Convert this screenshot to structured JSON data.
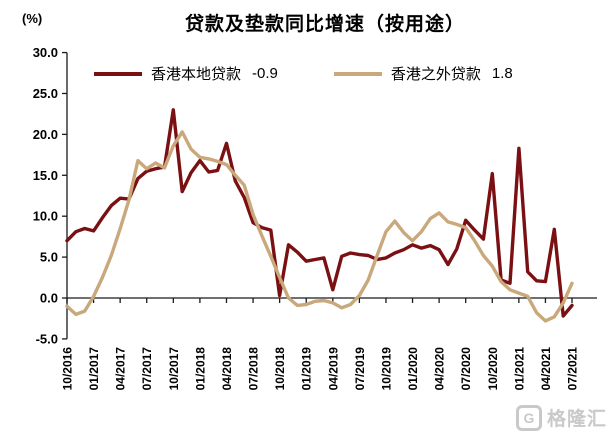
{
  "header": {
    "title": "贷款及垫款同比增速（按用途）",
    "unit_label": "(%)"
  },
  "legend": [
    {
      "label": "香港本地贷款",
      "value": "-0.9",
      "color": "#7A1013"
    },
    {
      "label": "香港之外贷款",
      "value": "1.8",
      "color": "#C9A87C"
    }
  ],
  "watermark": {
    "logo_text": "G",
    "brand_text": "格隆汇"
  },
  "chart_data": {
    "type": "line",
    "title": "贷款及垫款同比增速（按用途）",
    "ylabel": "(%)",
    "xlabel": "",
    "ylim": [
      -5,
      30
    ],
    "ytick_step": 5,
    "grid": false,
    "legend_position": "top",
    "x_frequency": "monthly",
    "x_tick_labels": [
      "10/2016",
      "01/2017",
      "04/2017",
      "07/2017",
      "10/2017",
      "01/2018",
      "04/2018",
      "07/2018",
      "10/2018",
      "01/2019",
      "04/2019",
      "07/2019",
      "10/2019",
      "01/2020",
      "04/2020",
      "07/2020",
      "10/2020",
      "01/2021",
      "04/2021",
      "07/2021"
    ],
    "series": [
      {
        "name": "香港本地贷款",
        "last_value": -0.9,
        "color": "#7A1013",
        "values": [
          7.0,
          8.1,
          8.5,
          8.2,
          9.8,
          11.3,
          12.2,
          12.1,
          14.6,
          15.5,
          15.8,
          16.0,
          23.0,
          13.0,
          15.3,
          16.8,
          15.4,
          15.6,
          18.9,
          14.3,
          12.3,
          9.2,
          8.6,
          8.3,
          0.3,
          6.5,
          5.6,
          4.5,
          4.7,
          4.9,
          1.0,
          5.1,
          5.5,
          5.3,
          5.2,
          4.7,
          4.9,
          5.5,
          5.9,
          6.5,
          6.1,
          6.4,
          5.9,
          4.1,
          6.0,
          9.5,
          8.3,
          7.2,
          15.2,
          2.2,
          1.8,
          18.3,
          3.2,
          2.1,
          2.0,
          8.4,
          -2.2,
          -0.9
        ]
      },
      {
        "name": "香港之外贷款",
        "last_value": 1.8,
        "color": "#C9A87C",
        "values": [
          -1.0,
          -2.0,
          -1.6,
          0.2,
          2.5,
          5.2,
          8.5,
          12.0,
          16.8,
          15.8,
          16.5,
          15.9,
          18.6,
          20.3,
          18.2,
          17.2,
          17.0,
          16.7,
          16.3,
          15.0,
          13.8,
          10.2,
          7.6,
          5.1,
          2.5,
          0.0,
          -0.9,
          -0.8,
          -0.4,
          -0.3,
          -0.6,
          -1.2,
          -0.8,
          0.3,
          2.2,
          5.2,
          8.1,
          9.4,
          8.0,
          7.0,
          8.1,
          9.7,
          10.4,
          9.3,
          9.0,
          8.6,
          7.0,
          5.2,
          3.9,
          2.0,
          1.0,
          0.6,
          0.2,
          -1.8,
          -2.8,
          -2.3,
          -0.6,
          1.8
        ]
      }
    ]
  }
}
